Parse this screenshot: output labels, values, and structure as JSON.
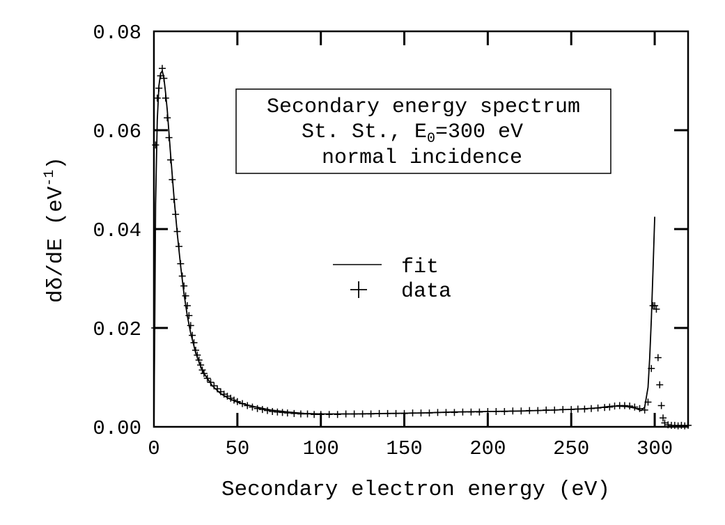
{
  "chart_data": {
    "type": "scatter",
    "xlabel": "Secondary electron energy (eV)",
    "ylabel_text": "dδ/dE (eV",
    "ylabel_superscript": "-1",
    "ylabel_close": ")",
    "xlim": [
      0,
      320
    ],
    "ylim": [
      0,
      0.08
    ],
    "x_ticks": [
      0,
      50,
      100,
      150,
      200,
      250,
      300
    ],
    "x_tick_labels": [
      "0",
      "50",
      "100",
      "150",
      "200",
      "250",
      "300"
    ],
    "y_ticks": [
      0,
      0.02,
      0.04,
      0.06,
      0.08
    ],
    "y_tick_labels": [
      "0.00",
      "0.02",
      "0.04",
      "0.06",
      "0.08"
    ],
    "grid": false,
    "legend_position": "center",
    "annotation": {
      "line1": "Secondary energy spectrum",
      "line2_prefix": "St. St., E",
      "line2_subscript": "0",
      "line2_suffix": "=300 eV",
      "line3": "normal incidence"
    },
    "series": [
      {
        "name": "fit",
        "style": "line",
        "x": [
          0,
          0.5,
          1,
          2,
          3,
          4,
          5,
          6,
          7,
          8,
          10,
          12,
          14,
          16,
          18,
          20,
          22,
          25,
          28,
          30,
          35,
          40,
          45,
          50,
          55,
          60,
          70,
          80,
          90,
          100,
          120,
          140,
          160,
          180,
          200,
          220,
          240,
          255,
          265,
          272,
          278,
          283,
          288,
          292,
          294,
          296,
          297,
          298,
          299,
          300
        ],
        "y": [
          0.0,
          0.02,
          0.045,
          0.062,
          0.069,
          0.0715,
          0.072,
          0.0705,
          0.0675,
          0.064,
          0.055,
          0.0465,
          0.039,
          0.0325,
          0.027,
          0.0225,
          0.019,
          0.015,
          0.0122,
          0.0108,
          0.0083,
          0.0067,
          0.0057,
          0.005,
          0.0045,
          0.0041,
          0.0034,
          0.003,
          0.0027,
          0.0026,
          0.0026,
          0.0027,
          0.0028,
          0.003,
          0.0031,
          0.0032,
          0.0034,
          0.0036,
          0.0038,
          0.0041,
          0.0042,
          0.0041,
          0.0038,
          0.0033,
          0.004,
          0.008,
          0.014,
          0.022,
          0.032,
          0.0425
        ]
      },
      {
        "name": "data",
        "style": "plus",
        "x": [
          0.5,
          1,
          2,
          3,
          4,
          5,
          6,
          7,
          8,
          9,
          10,
          11,
          12,
          13,
          14,
          15,
          16,
          17,
          18,
          19,
          20,
          21,
          22,
          23,
          24,
          25,
          26,
          27,
          28,
          29,
          30,
          32,
          34,
          36,
          38,
          40,
          42,
          44,
          46,
          48,
          50,
          53,
          56,
          59,
          62,
          65,
          68,
          71,
          74,
          77,
          80,
          84,
          88,
          92,
          96,
          100,
          105,
          110,
          115,
          120,
          125,
          130,
          135,
          140,
          145,
          150,
          155,
          160,
          165,
          170,
          175,
          180,
          185,
          190,
          195,
          200,
          205,
          210,
          215,
          220,
          225,
          230,
          235,
          240,
          245,
          250,
          254,
          258,
          262,
          266,
          270,
          273,
          276,
          279,
          282,
          285,
          288,
          291,
          294,
          296,
          298,
          299,
          300,
          301,
          302,
          303,
          304,
          305,
          306,
          308,
          310,
          312,
          314,
          316,
          318,
          320
        ],
        "y": [
          0.02,
          0.057,
          0.0665,
          0.0685,
          0.071,
          0.0725,
          0.0705,
          0.0665,
          0.0625,
          0.0585,
          0.054,
          0.05,
          0.046,
          0.043,
          0.0395,
          0.0365,
          0.033,
          0.0305,
          0.0285,
          0.0265,
          0.0245,
          0.0225,
          0.0205,
          0.0185,
          0.017,
          0.0155,
          0.0145,
          0.0135,
          0.0125,
          0.0115,
          0.0108,
          0.0098,
          0.009,
          0.0083,
          0.0077,
          0.0071,
          0.0066,
          0.0062,
          0.0058,
          0.0054,
          0.0051,
          0.0047,
          0.0043,
          0.004,
          0.0037,
          0.0035,
          0.0033,
          0.0031,
          0.003,
          0.0029,
          0.0028,
          0.0027,
          0.0026,
          0.0026,
          0.0025,
          0.0025,
          0.0025,
          0.0025,
          0.0026,
          0.0026,
          0.0026,
          0.0026,
          0.0027,
          0.0027,
          0.0027,
          0.0027,
          0.0028,
          0.0028,
          0.0028,
          0.0029,
          0.0029,
          0.0029,
          0.003,
          0.003,
          0.003,
          0.0031,
          0.0031,
          0.0031,
          0.0032,
          0.0032,
          0.0033,
          0.0033,
          0.0034,
          0.0034,
          0.0035,
          0.0035,
          0.0036,
          0.0036,
          0.0037,
          0.0038,
          0.0039,
          0.004,
          0.0042,
          0.0043,
          0.0043,
          0.0042,
          0.004,
          0.0037,
          0.0034,
          0.005,
          0.0118,
          0.0245,
          0.0245,
          0.0238,
          0.014,
          0.0085,
          0.0043,
          0.0018,
          0.0008,
          0.0004,
          0.0003,
          0.0003,
          0.0002,
          0.0003,
          0.0002,
          0.0003
        ]
      }
    ]
  }
}
